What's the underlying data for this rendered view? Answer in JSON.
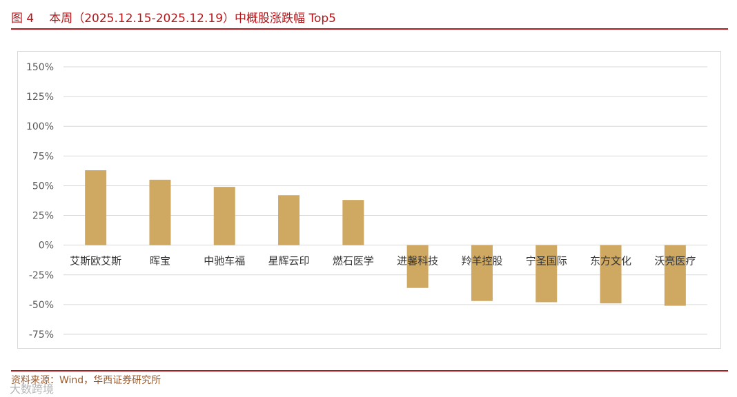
{
  "figure": {
    "number_label": "图 4",
    "title": "本周（2025.12.15-2025.12.19）中概股涨跌幅 Top5",
    "source": "资料来源：Wind，华西证券研究所",
    "watermark": "大数跨境"
  },
  "colors": {
    "accent_red": "#b3171b",
    "bar": "#cfa862",
    "grid": "#d9d9d9"
  },
  "chart_data": {
    "type": "bar",
    "title": "",
    "xlabel": "",
    "ylabel": "",
    "ylim": [
      -0.75,
      1.5
    ],
    "y_ticks": [
      1.5,
      1.25,
      1.0,
      0.75,
      0.5,
      0.25,
      0,
      -0.25,
      -0.5,
      -0.75
    ],
    "y_tick_labels": [
      "150%",
      "125%",
      "100%",
      "75%",
      "50%",
      "25%",
      "0%",
      "-25%",
      "-50%",
      "-75%"
    ],
    "grid": true,
    "legend": "none",
    "categories": [
      "艾斯欧艾斯",
      "晖宝",
      "中驰车福",
      "星辉云印",
      "燃石医学",
      "进馨科技",
      "羚羊控股",
      "宁圣国际",
      "东方文化",
      "沃亮医疗"
    ],
    "values": [
      0.63,
      0.55,
      0.49,
      0.42,
      0.38,
      -0.36,
      -0.47,
      -0.48,
      -0.49,
      -0.51
    ]
  }
}
